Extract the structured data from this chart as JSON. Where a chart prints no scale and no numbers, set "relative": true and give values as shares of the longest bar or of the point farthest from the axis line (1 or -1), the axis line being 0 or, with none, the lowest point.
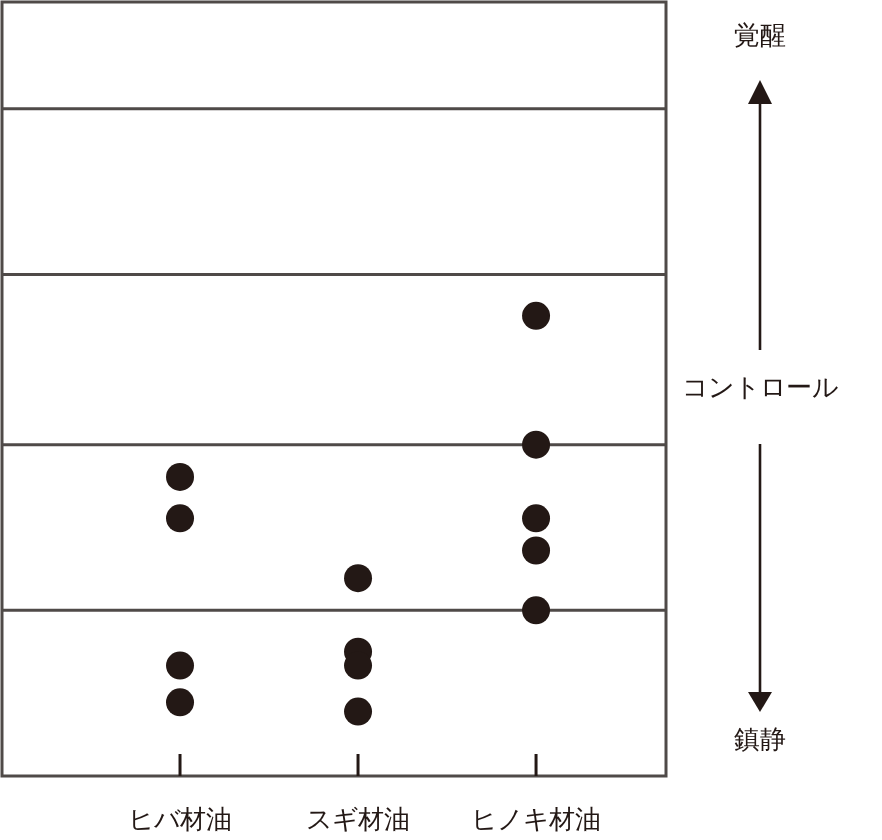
{
  "chart_data": {
    "type": "scatter",
    "relative": true,
    "categories": [
      "ヒバ材油",
      "スギ材油",
      "ヒノキ材油"
    ],
    "series": [
      {
        "color": "#231815",
        "x": [
          "ヒバ材油",
          "ヒバ材油",
          "ヒバ材油",
          "ヒバ材油",
          "スギ材油",
          "スギ材油",
          "スギ材油",
          "スギ材油",
          "ヒノキ材油",
          "ヒノキ材油",
          "ヒノキ材油",
          "ヒノキ材油",
          "ヒノキ材油"
        ],
        "values": [
          0.65,
          0.56,
          0.24,
          0.16,
          0.43,
          0.27,
          0.24,
          0.14,
          1,
          0.72,
          0.56,
          0.49,
          0.36
        ]
      }
    ],
    "marker": "circle",
    "tick_labels": "x",
    "ref_lines": [
      {
        "axis": "y",
        "value": 0.36,
        "color": "#4f4a48"
      },
      {
        "axis": "y",
        "value": 0.72,
        "color": "#4f4a48"
      },
      {
        "axis": "y",
        "value": 1.09,
        "color": "#4f4a48"
      },
      {
        "axis": "y",
        "value": 1.45,
        "color": "#4f4a48"
      }
    ],
    "annotations": [
      "覚醒",
      "コントロール",
      "鎮静"
    ]
  }
}
